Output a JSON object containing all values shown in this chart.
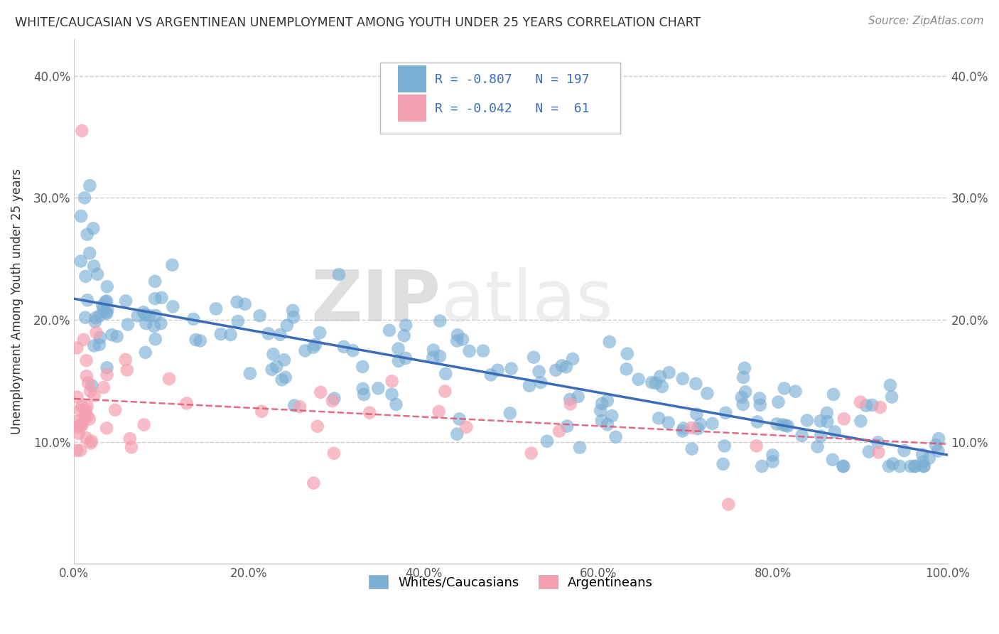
{
  "title": "WHITE/CAUCASIAN VS ARGENTINEAN UNEMPLOYMENT AMONG YOUTH UNDER 25 YEARS CORRELATION CHART",
  "source": "Source: ZipAtlas.com",
  "ylabel": "Unemployment Among Youth under 25 years",
  "blue_R": -0.807,
  "blue_N": 197,
  "pink_R": -0.042,
  "pink_N": 61,
  "blue_color": "#7BAFD4",
  "pink_color": "#F4A0B0",
  "blue_line_color": "#3B6CB7",
  "pink_line_color": "#E05070",
  "legend_label_blue": "Whites/Caucasians",
  "legend_label_pink": "Argentineans",
  "watermark_zip": "ZIP",
  "watermark_atlas": "atlas",
  "xlim": [
    0,
    1
  ],
  "ylim": [
    0,
    0.43
  ],
  "yticks": [
    0.1,
    0.2,
    0.3,
    0.4
  ],
  "xticks": [
    0.0,
    0.2,
    0.4,
    0.6,
    0.8,
    1.0
  ]
}
